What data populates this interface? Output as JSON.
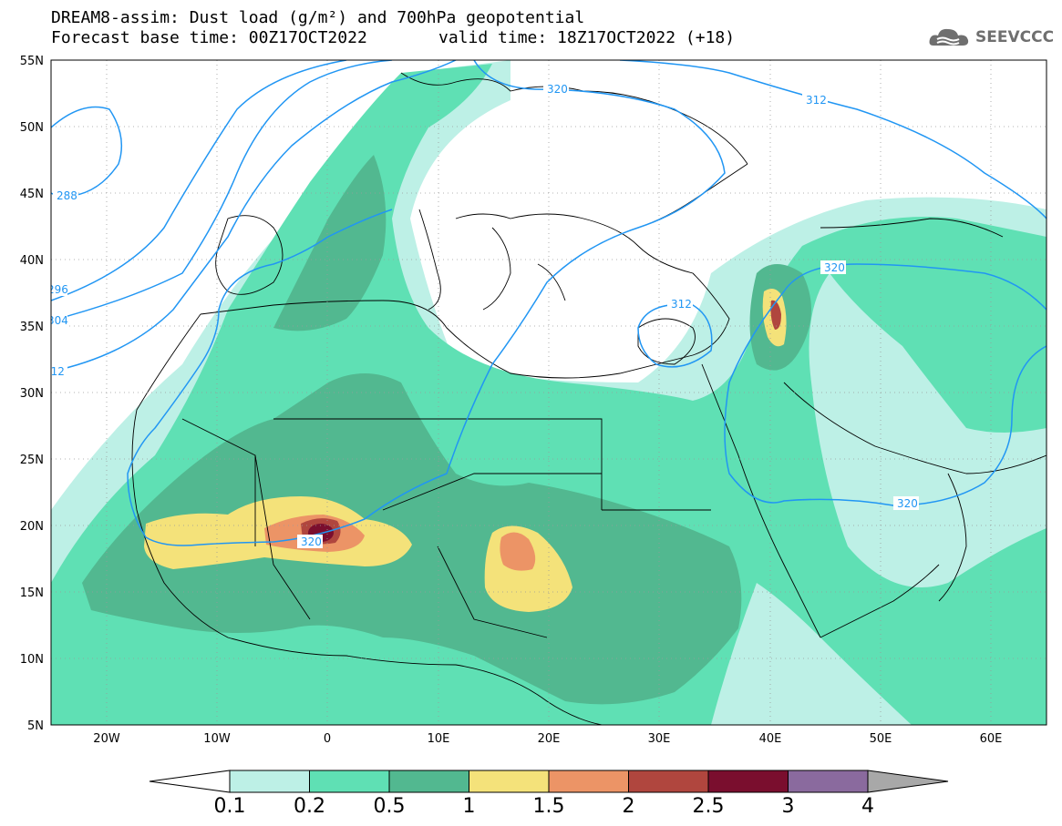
{
  "header": {
    "title_line1": "DREAM8-assim: Dust load (g/m²) and 700hPa geopotential",
    "title_line2_left": "Forecast base time: 00Z17OCT2022",
    "title_line2_right": "valid time: 18Z17OCT2022 (+18)"
  },
  "logo": {
    "text": "SEEVCCC",
    "icon": "cloud-logo-icon"
  },
  "axes": {
    "lat_labels": [
      "55N",
      "50N",
      "45N",
      "40N",
      "35N",
      "30N",
      "25N",
      "20N",
      "15N",
      "10N",
      "5N"
    ],
    "lon_labels": [
      "20W",
      "10W",
      "0",
      "10E",
      "20E",
      "30E",
      "40E",
      "50E",
      "60E"
    ],
    "lat_range": [
      5,
      55
    ],
    "lon_range": [
      -25,
      65
    ]
  },
  "contour_labels": [
    "320",
    "312",
    "288",
    "296",
    "304",
    "312",
    "320",
    "320",
    "312",
    "320"
  ],
  "colorbar": {
    "levels": [
      "0.1",
      "0.2",
      "0.5",
      "1",
      "1.5",
      "2",
      "2.5",
      "3",
      "4"
    ],
    "colors": [
      "#bdf0e6",
      "#5fe0b4",
      "#52b890",
      "#f4e27a",
      "#ec9466",
      "#b0463e",
      "#7a0e2e",
      "#8a6a9e",
      "#a8a8a8"
    ],
    "under_color": "#ffffff",
    "over_color": "#a8a8a8"
  },
  "colors": {
    "contour_line": "#2196f3",
    "coastline": "#000000",
    "grid": "#888888"
  }
}
